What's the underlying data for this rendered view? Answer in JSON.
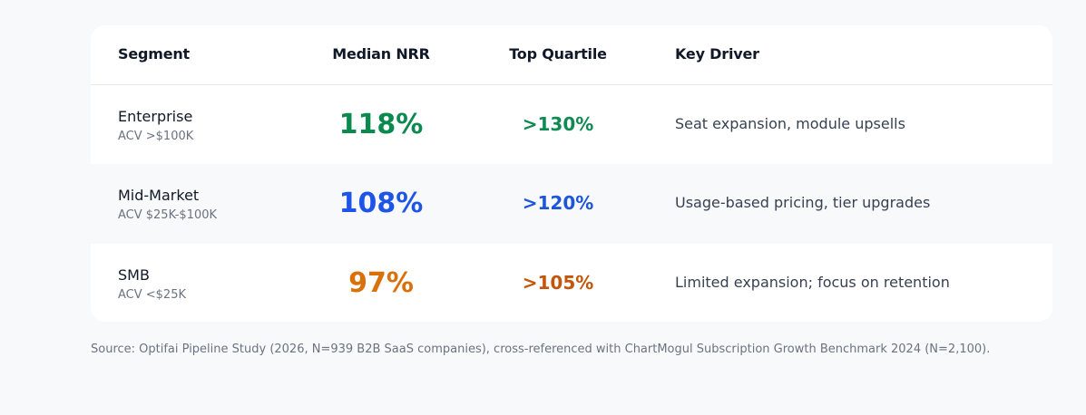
{
  "table": {
    "headers": {
      "segment": "Segment",
      "median_nrr": "Median NRR",
      "top_quartile": "Top Quartile",
      "key_driver": "Key Driver"
    },
    "rows": [
      {
        "segment": "Enterprise",
        "acv": "ACV >$100K",
        "median_nrr": "118%",
        "top_quartile": ">130%",
        "key_driver": "Seat expansion, module upsells",
        "color": "#0b8a4f"
      },
      {
        "segment": "Mid-Market",
        "acv": "ACV $25K-$100K",
        "median_nrr": "108%",
        "top_quartile": ">120%",
        "key_driver": "Usage-based pricing, tier upgrades",
        "color": "#1d55e6"
      },
      {
        "segment": "SMB",
        "acv": "ACV <$25K",
        "median_nrr": "97%",
        "top_quartile": ">105%",
        "key_driver": "Limited expansion; focus on retention",
        "color": "#d97108"
      }
    ]
  },
  "source": "Source: Optifai Pipeline Study (2026, N=939 B2B SaaS companies), cross-referenced with ChartMogul Subscription Growth Benchmark 2024 (N=2,100)."
}
